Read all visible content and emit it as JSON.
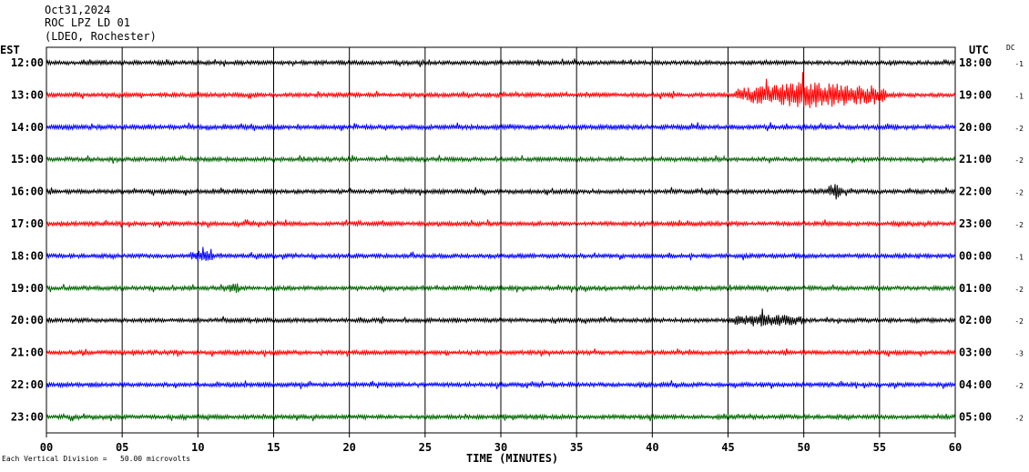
{
  "header": {
    "date": "Oct31,2024",
    "station": "ROC LPZ LD 01",
    "network": "(LDEO, Rochester)"
  },
  "left_zone": "EST",
  "right_zone": "UTC",
  "dc_label": "DC",
  "footer_note": "Each Vertical Division =   50.00 microvolts",
  "colors": {
    "black": "#000000",
    "red": "#ff0000",
    "blue": "#0000ff",
    "green": "#006400"
  },
  "chart_data": {
    "type": "line",
    "title": "",
    "xlabel": "TIME (MINUTES)",
    "ylabel": "",
    "xlim": [
      0,
      60
    ],
    "x_ticks": [
      "00",
      "05",
      "10",
      "15",
      "20",
      "25",
      "30",
      "35",
      "40",
      "45",
      "50",
      "55",
      "60"
    ],
    "vertical_grid_every_minutes": 5,
    "series": [
      {
        "est": "12:00",
        "utc": "18:00",
        "dc": "-1",
        "color": "black",
        "amplitude": 1.0,
        "events": []
      },
      {
        "est": "13:00",
        "utc": "19:00",
        "dc": "-1",
        "color": "red",
        "amplitude": 1.0,
        "events": [
          {
            "start": 45.5,
            "end": 55.5,
            "peak": 6
          }
        ]
      },
      {
        "est": "14:00",
        "utc": "20:00",
        "dc": "-2",
        "color": "blue",
        "amplitude": 1.1,
        "events": []
      },
      {
        "est": "15:00",
        "utc": "21:00",
        "dc": "-2",
        "color": "green",
        "amplitude": 1.0,
        "events": []
      },
      {
        "est": "16:00",
        "utc": "22:00",
        "dc": "-2",
        "color": "black",
        "amplitude": 1.0,
        "events": [
          {
            "start": 51.5,
            "end": 52.5,
            "peak": 3
          }
        ]
      },
      {
        "est": "17:00",
        "utc": "23:00",
        "dc": "-2",
        "color": "red",
        "amplitude": 1.0,
        "events": []
      },
      {
        "est": "18:00",
        "utc": "00:00",
        "dc": "-1",
        "color": "blue",
        "amplitude": 1.0,
        "events": [
          {
            "start": 9.5,
            "end": 11,
            "peak": 2.5
          }
        ]
      },
      {
        "est": "19:00",
        "utc": "01:00",
        "dc": "-2",
        "color": "green",
        "amplitude": 1.0,
        "events": [
          {
            "start": 12,
            "end": 12.7,
            "peak": 2.5
          }
        ]
      },
      {
        "est": "20:00",
        "utc": "02:00",
        "dc": "-2",
        "color": "black",
        "amplitude": 1.0,
        "events": [
          {
            "start": 45,
            "end": 50,
            "peak": 2.5
          }
        ]
      },
      {
        "est": "21:00",
        "utc": "03:00",
        "dc": "-3",
        "color": "red",
        "amplitude": 1.0,
        "events": []
      },
      {
        "est": "22:00",
        "utc": "04:00",
        "dc": "-2",
        "color": "blue",
        "amplitude": 1.0,
        "events": []
      },
      {
        "est": "23:00",
        "utc": "05:00",
        "dc": "-2",
        "color": "green",
        "amplitude": 1.0,
        "events": []
      }
    ]
  }
}
